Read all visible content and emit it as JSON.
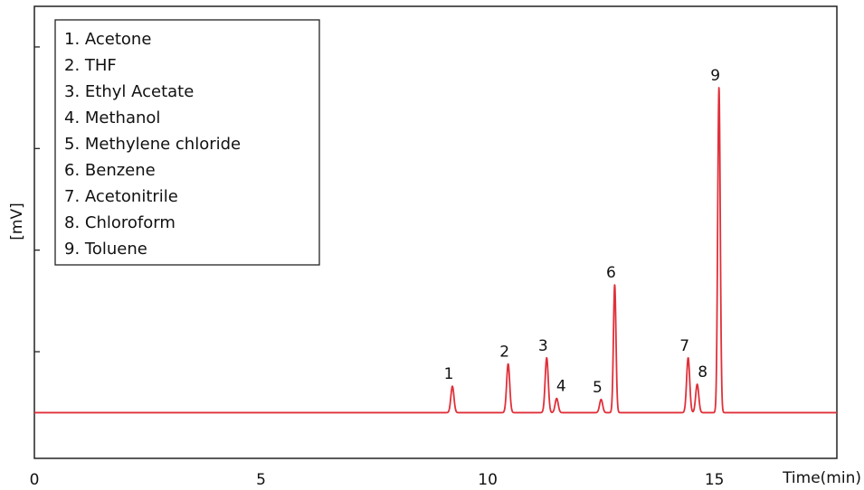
{
  "chart_data": {
    "type": "line",
    "xlabel": "Time(min)",
    "ylabel": "[mV]",
    "xlim": [
      0,
      17.7
    ],
    "ylim": [
      -2.25,
      20
    ],
    "x_ticks": [
      0,
      5,
      10,
      15
    ],
    "x_tick_labels": [
      "0",
      "5",
      "10",
      "15"
    ],
    "y_ticks": [
      3,
      8,
      13,
      18
    ],
    "grid": false,
    "baseline": 0,
    "line_color": "#e0303a",
    "legend": {
      "placement": "top-left",
      "entries": [
        "1. Acetone",
        "2. THF",
        "3. Ethyl Acetate",
        "4. Methanol",
        "5. Methylene chloride",
        "6. Benzene",
        "7. Acetonitrile",
        "8. Chloroform",
        "9. Toluene"
      ]
    },
    "peaks": [
      {
        "label": "1",
        "x": 9.22,
        "height": 1.3
      },
      {
        "label": "2",
        "x": 10.45,
        "height": 2.4
      },
      {
        "label": "3",
        "x": 11.3,
        "height": 2.7
      },
      {
        "label": "4",
        "x": 11.52,
        "height": 0.7
      },
      {
        "label": "5",
        "x": 12.5,
        "height": 0.65
      },
      {
        "label": "6",
        "x": 12.8,
        "height": 6.3
      },
      {
        "label": "7",
        "x": 14.42,
        "height": 2.7
      },
      {
        "label": "8",
        "x": 14.62,
        "height": 1.4
      },
      {
        "label": "9",
        "x": 15.1,
        "height": 16.0
      }
    ]
  }
}
